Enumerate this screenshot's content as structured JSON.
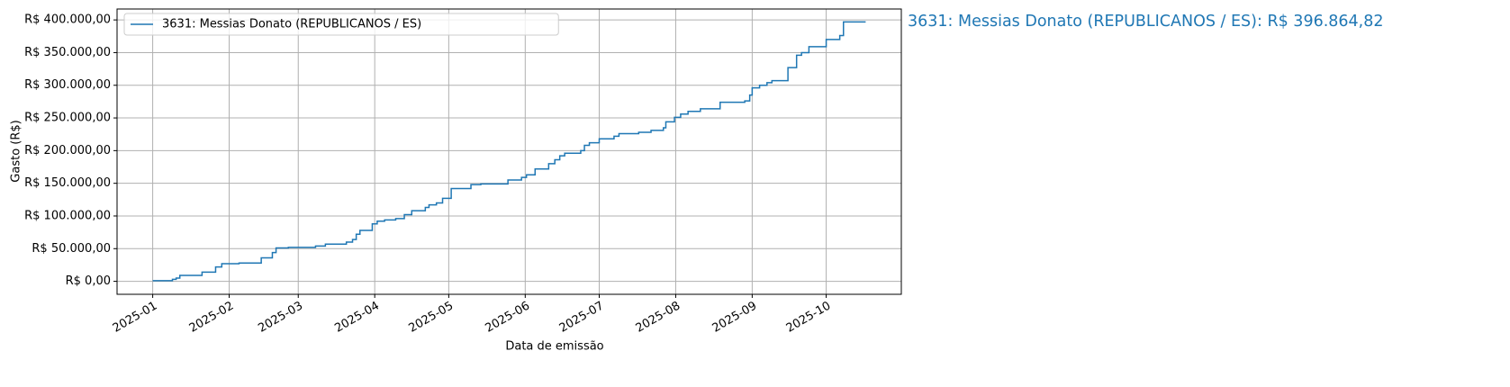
{
  "chart_data": {
    "type": "line",
    "drawstyle": "steps-post",
    "xlabel": "Data de emissão",
    "ylabel": "Gasto (R$)",
    "annotation": "3631: Messias Donato (REPUBLICANOS / ES): R$ 396.864,82",
    "x": [
      0,
      8,
      9.5,
      11,
      20,
      25.5,
      28,
      35,
      44,
      48.5,
      50,
      55,
      66,
      70,
      78.5,
      81,
      82.5,
      84,
      89,
      91,
      94,
      98.5,
      102,
      105,
      110.5,
      112,
      115,
      117.5,
      121,
      129,
      133,
      144,
      149.5,
      151.5,
      155,
      160.5,
      163,
      165,
      167,
      173.5,
      175,
      177,
      181,
      187,
      189,
      197,
      202,
      207,
      208,
      211.5,
      214,
      217,
      222,
      230,
      240,
      242,
      243,
      246,
      249,
      251,
      257.5,
      261,
      263,
      266,
      273,
      278.5,
      280,
      289
    ],
    "series": [
      {
        "name": "3631: Messias Donato (REPUBLICANOS / ES)",
        "color": "#1f77b4",
        "values": [
          1000,
          3000,
          5000,
          9000,
          14000,
          22000,
          27000,
          28000,
          36000,
          44000,
          51000,
          52000,
          54000,
          57000,
          60000,
          64000,
          72000,
          78000,
          88000,
          92000,
          94000,
          96000,
          102000,
          108000,
          113000,
          117000,
          120000,
          127000,
          142000,
          148000,
          149000,
          155000,
          159000,
          163000,
          172000,
          180000,
          186000,
          192000,
          196000,
          200000,
          208000,
          212000,
          218000,
          222000,
          226000,
          228000,
          231000,
          235000,
          244000,
          251000,
          256000,
          260000,
          264000,
          274000,
          276000,
          285000,
          296000,
          300000,
          304000,
          307000,
          327000,
          346000,
          350000,
          359000,
          370000,
          376000,
          396864.82,
          396864.82
        ]
      }
    ],
    "xlim": [
      -14.45,
      303.45
    ],
    "xticks": [
      {
        "value": 0,
        "label": "2025-01"
      },
      {
        "value": 31,
        "label": "2025-02"
      },
      {
        "value": 59,
        "label": "2025-03"
      },
      {
        "value": 90,
        "label": "2025-04"
      },
      {
        "value": 120,
        "label": "2025-05"
      },
      {
        "value": 151,
        "label": "2025-06"
      },
      {
        "value": 181,
        "label": "2025-07"
      },
      {
        "value": 212,
        "label": "2025-08"
      },
      {
        "value": 243,
        "label": "2025-09"
      },
      {
        "value": 273,
        "label": "2025-10"
      }
    ],
    "ylim": [
      -19843.24,
      416708.06
    ],
    "yticks": [
      {
        "value": 0,
        "label": "R$ 0,00"
      },
      {
        "value": 50000,
        "label": "R$ 50.000,00"
      },
      {
        "value": 100000,
        "label": "R$ 100.000,00"
      },
      {
        "value": 150000,
        "label": "R$ 150.000,00"
      },
      {
        "value": 200000,
        "label": "R$ 200.000,00"
      },
      {
        "value": 250000,
        "label": "R$ 250.000,00"
      },
      {
        "value": 300000,
        "label": "R$ 300.000,00"
      },
      {
        "value": 350000,
        "label": "R$ 350.000,00"
      },
      {
        "value": 400000,
        "label": "R$ 400.000,00"
      }
    ],
    "grid": true,
    "legend": "upper-left"
  }
}
